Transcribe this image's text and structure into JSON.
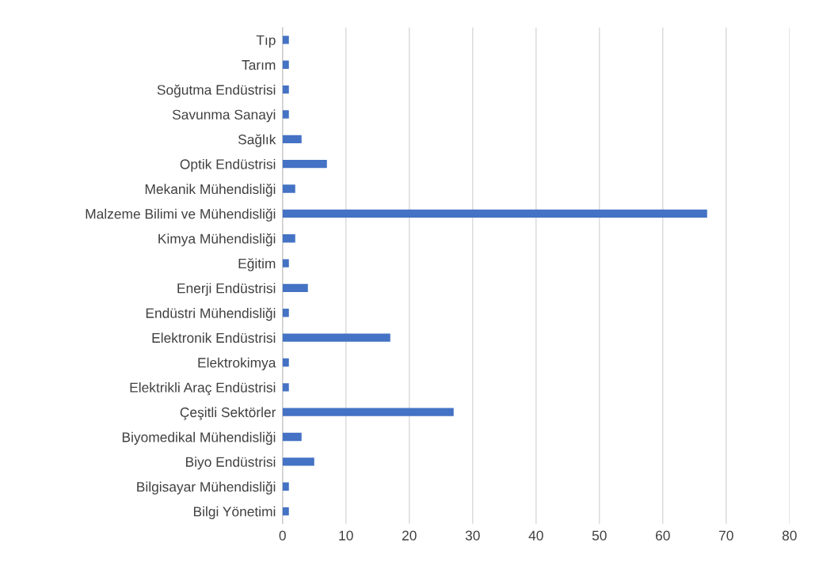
{
  "chart_data": {
    "type": "bar",
    "orientation": "horizontal",
    "categories": [
      "Tıp",
      "Tarım",
      "Soğutma Endüstrisi",
      "Savunma Sanayi",
      "Sağlık",
      "Optik Endüstrisi",
      "Mekanik Mühendisliği",
      "Malzeme Bilimi ve Mühendisliği",
      "Kimya Mühendisliği",
      "Eğitim",
      "Enerji Endüstrisi",
      "Endüstri Mühendisliği",
      "Elektronik Endüstrisi",
      "Elektrokimya",
      "Elektrikli Araç Endüstrisi",
      "Çeşitli Sektörler",
      "Biyomedikal Mühendisliği",
      "Biyo Endüstrisi",
      "Bilgisayar Mühendisliği",
      "Bilgi Yönetimi"
    ],
    "values": [
      1,
      1,
      1,
      1,
      3,
      7,
      2,
      67,
      2,
      1,
      4,
      1,
      17,
      1,
      1,
      27,
      3,
      5,
      1,
      1
    ],
    "color": "#4472c4",
    "xlim": [
      0,
      80
    ],
    "xticks": [
      0,
      10,
      20,
      30,
      40,
      50,
      60,
      70,
      80
    ],
    "grid": "x",
    "legend": false
  }
}
